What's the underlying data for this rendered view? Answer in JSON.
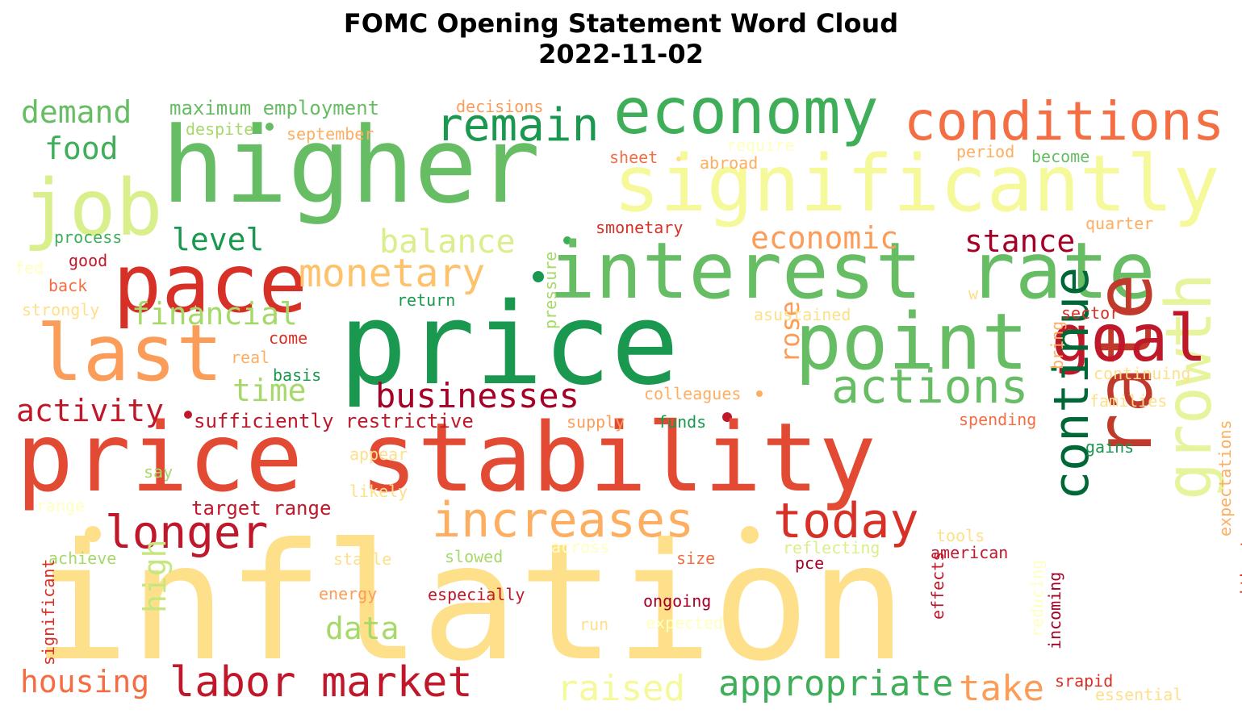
{
  "title": "FOMC Opening Statement Word Cloud",
  "subtitle": "2022-11-02",
  "colors": {
    "dark_red": "#a50026",
    "red": "#d73027",
    "orange_red": "#f46d43",
    "orange": "#fdae61",
    "yellow": "#fee08b",
    "pale_yellow": "#ffffbf",
    "pale_green": "#d9ef8b",
    "light_green": "#a6d96a",
    "green": "#66bd63",
    "dark_green": "#1a9850",
    "deepest_green": "#006837"
  },
  "words": [
    {
      "text": "inflation",
      "color": "#fee08b"
    },
    {
      "text": "price stability",
      "color": "#e24a33"
    },
    {
      "text": "price",
      "color": "#1a9850"
    },
    {
      "text": "higher",
      "color": "#66bd63"
    },
    {
      "text": "interest rate",
      "color": "#66bd63"
    },
    {
      "text": "significantly",
      "color": "#f5f99a"
    },
    {
      "text": "economy",
      "color": "#3fae58"
    },
    {
      "text": "conditions",
      "color": "#f46d43"
    },
    {
      "text": "pace",
      "color": "#d73027"
    },
    {
      "text": "point",
      "color": "#66bd63"
    },
    {
      "text": "last",
      "color": "#fb9d59"
    },
    {
      "text": "job",
      "color": "#d9ef8b"
    },
    {
      "text": "rate",
      "color": "#c0392b"
    },
    {
      "text": "growth",
      "color": "#e6f59d"
    },
    {
      "text": "goal",
      "color": "#c0182b"
    },
    {
      "text": "remain",
      "color": "#1a9850"
    },
    {
      "text": "actions",
      "color": "#66bd63"
    },
    {
      "text": "increases",
      "color": "#fdae61"
    },
    {
      "text": "today",
      "color": "#d73027"
    },
    {
      "text": "continue",
      "color": "#006837"
    },
    {
      "text": "longer",
      "color": "#c0182b"
    },
    {
      "text": "labor market",
      "color": "#c0182b"
    },
    {
      "text": "businesses",
      "color": "#a50026"
    },
    {
      "text": "monetary",
      "color": "#fdc26b"
    },
    {
      "text": "appropriate",
      "color": "#3fae58"
    },
    {
      "text": "raised",
      "color": "#f5f99a"
    },
    {
      "text": "take",
      "color": "#fb9d59"
    },
    {
      "text": "balance",
      "color": "#d9ef8b"
    },
    {
      "text": "economic",
      "color": "#fb9d59"
    },
    {
      "text": "stance",
      "color": "#a50026"
    },
    {
      "text": "demand",
      "color": "#66bd63"
    },
    {
      "text": "food",
      "color": "#3fae58"
    },
    {
      "text": "level",
      "color": "#1a9850"
    },
    {
      "text": "financial",
      "color": "#a6d96a"
    },
    {
      "text": "time",
      "color": "#a6d96a"
    },
    {
      "text": "activity",
      "color": "#c0182b"
    },
    {
      "text": "data",
      "color": "#a6d96a"
    },
    {
      "text": "housing",
      "color": "#f46d43"
    },
    {
      "text": "high",
      "color": "#c6e77f"
    },
    {
      "text": "rose",
      "color": "#fb9d59"
    },
    {
      "text": "maximum employment",
      "color": "#66bd63"
    },
    {
      "text": "sufficiently restrictive",
      "color": "#c0182b"
    },
    {
      "text": "target range",
      "color": "#c0182b"
    },
    {
      "text": "decisions",
      "color": "#fb9d59"
    },
    {
      "text": "despite",
      "color": "#a6d96a"
    },
    {
      "text": "september",
      "color": "#fdae61"
    },
    {
      "text": "sheet",
      "color": "#f46d43"
    },
    {
      "text": "abroad",
      "color": "#fdae61"
    },
    {
      "text": "require",
      "color": "#ffffbf"
    },
    {
      "text": "period",
      "color": "#fdae61"
    },
    {
      "text": "become",
      "color": "#66bd63"
    },
    {
      "text": "smonetary",
      "color": "#d73027"
    },
    {
      "text": "quarter",
      "color": "#fdae61"
    },
    {
      "text": "process",
      "color": "#3fae58"
    },
    {
      "text": "good",
      "color": "#c0182b"
    },
    {
      "text": "fed",
      "color": "#ffffbf"
    },
    {
      "text": "back",
      "color": "#f46d43"
    },
    {
      "text": "strongly",
      "color": "#fee08b"
    },
    {
      "text": "return",
      "color": "#1a9850"
    },
    {
      "text": "pressure",
      "color": "#a6d96a"
    },
    {
      "text": "w",
      "color": "#fee08b"
    },
    {
      "text": "asustained",
      "color": "#fee08b"
    },
    {
      "text": "sector",
      "color": "#d73027"
    },
    {
      "text": "come",
      "color": "#d73027"
    },
    {
      "text": "real",
      "color": "#fdae61"
    },
    {
      "text": "basis",
      "color": "#1a9850"
    },
    {
      "text": "bring",
      "color": "#fdae61"
    },
    {
      "text": "continuing",
      "color": "#fee08b"
    },
    {
      "text": "colleagues",
      "color": "#fdae61"
    },
    {
      "text": "families",
      "color": "#fee08b"
    },
    {
      "text": "supply",
      "color": "#fb9d59"
    },
    {
      "text": "funds",
      "color": "#1a9850"
    },
    {
      "text": "spending",
      "color": "#f46d43"
    },
    {
      "text": "gains",
      "color": "#1a9850"
    },
    {
      "text": "expectations",
      "color": "#fdae61"
    },
    {
      "text": "without",
      "color": "#d73027"
    },
    {
      "text": "appear",
      "color": "#fee08b"
    },
    {
      "text": "say",
      "color": "#a6d96a"
    },
    {
      "text": "likely",
      "color": "#fee08b"
    },
    {
      "text": "range",
      "color": "#ffffbf"
    },
    {
      "text": "achieve",
      "color": "#a6d96a"
    },
    {
      "text": "stable",
      "color": "#fee08b"
    },
    {
      "text": "slowed",
      "color": "#a6d96a"
    },
    {
      "text": "across",
      "color": "#ffffbf"
    },
    {
      "text": "size",
      "color": "#f46d43"
    },
    {
      "text": "tools",
      "color": "#fee08b"
    },
    {
      "text": "reflecting",
      "color": "#d9ef8b"
    },
    {
      "text": "american",
      "color": "#c0182b"
    },
    {
      "text": "pce",
      "color": "#a50026"
    },
    {
      "text": "significant",
      "color": "#d73027"
    },
    {
      "text": "energy",
      "color": "#fb9d59"
    },
    {
      "text": "especially",
      "color": "#c0182b"
    },
    {
      "text": "ongoing",
      "color": "#a50026"
    },
    {
      "text": "run",
      "color": "#fee08b"
    },
    {
      "text": "expected",
      "color": "#ffffbf"
    },
    {
      "text": "effects",
      "color": "#c0182b"
    },
    {
      "text": "reducing",
      "color": "#ffffbf"
    },
    {
      "text": "incoming",
      "color": "#a50026"
    },
    {
      "text": "srapid",
      "color": "#d73027"
    },
    {
      "text": "essential",
      "color": "#fee08b"
    }
  ]
}
